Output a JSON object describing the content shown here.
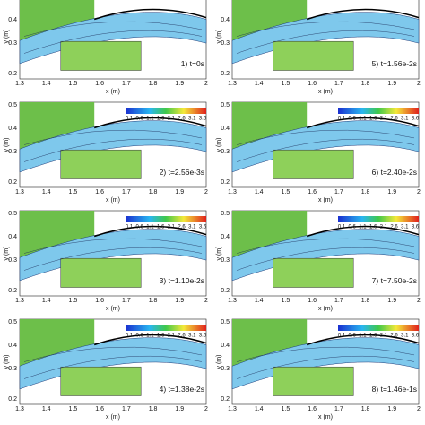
{
  "axes": {
    "xlabel": "x (m)",
    "ylabel": "y (m)",
    "xticks": [
      "1.3",
      "1.4",
      "1.5",
      "1.6",
      "1.7",
      "1.8",
      "1.9",
      "2"
    ],
    "yticks": [
      "0.5",
      "0.4",
      "0.3",
      "0.2"
    ]
  },
  "colorbar": {
    "ticks": [
      "0.1",
      "0.6",
      "1.1",
      "1.6",
      "2.1",
      "2.6",
      "3.1",
      "3.6"
    ]
  },
  "panels": [
    {
      "label": "1) t=0s"
    },
    {
      "label": "2) t=2.56e-3s"
    },
    {
      "label": "3) t=1.10e-2s"
    },
    {
      "label": "4) t=1.38e-2s"
    },
    {
      "label": "5) t=1.56e-2s"
    },
    {
      "label": "6) t=2.40e-2s"
    },
    {
      "label": "7) t=7.50e-2s"
    },
    {
      "label": "8) t=1.46e-1s"
    }
  ]
}
